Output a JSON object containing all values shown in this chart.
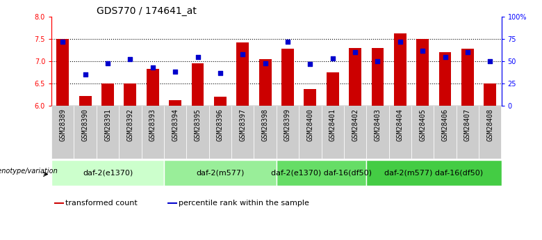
{
  "title": "GDS770 / 174641_at",
  "samples": [
    "GSM28389",
    "GSM28390",
    "GSM28391",
    "GSM28392",
    "GSM28393",
    "GSM28394",
    "GSM28395",
    "GSM28396",
    "GSM28397",
    "GSM28398",
    "GSM28399",
    "GSM28400",
    "GSM28401",
    "GSM28402",
    "GSM28403",
    "GSM28404",
    "GSM28405",
    "GSM28406",
    "GSM28407",
    "GSM28408"
  ],
  "transformed_count": [
    7.5,
    6.22,
    6.5,
    6.5,
    6.83,
    6.12,
    6.95,
    6.2,
    7.42,
    7.05,
    7.28,
    6.38,
    6.75,
    7.3,
    7.3,
    7.62,
    7.5,
    7.2,
    7.28,
    6.5
  ],
  "percentile_rank": [
    72,
    35,
    48,
    52,
    43,
    38,
    55,
    37,
    58,
    48,
    72,
    47,
    53,
    60,
    50,
    72,
    62,
    55,
    60,
    50
  ],
  "ylim_left": [
    6.0,
    8.0
  ],
  "ylim_right": [
    0,
    100
  ],
  "yticks_left": [
    6.0,
    6.5,
    7.0,
    7.5,
    8.0
  ],
  "yticks_right": [
    0,
    25,
    50,
    75,
    100
  ],
  "ytick_labels_right": [
    "0",
    "25",
    "50",
    "75",
    "100%"
  ],
  "bar_color": "#cc0000",
  "dot_color": "#0000cc",
  "bar_bottom": 6.0,
  "genotype_groups": [
    {
      "label": "daf-2(e1370)",
      "start": 0,
      "end": 5,
      "color": "#ccffcc"
    },
    {
      "label": "daf-2(m577)",
      "start": 5,
      "end": 10,
      "color": "#99ee99"
    },
    {
      "label": "daf-2(e1370) daf-16(df50)",
      "start": 10,
      "end": 14,
      "color": "#66dd66"
    },
    {
      "label": "daf-2(m577) daf-16(df50)",
      "start": 14,
      "end": 20,
      "color": "#44cc44"
    }
  ],
  "genotype_label": "genotype/variation",
  "legend_items": [
    {
      "label": "transformed count",
      "color": "#cc0000"
    },
    {
      "label": "percentile rank within the sample",
      "color": "#0000cc"
    }
  ],
  "grid_color": "#000000",
  "title_fontsize": 10,
  "tick_fontsize": 7,
  "group_label_fontsize": 8,
  "bar_width": 0.55,
  "sample_bg_color": "#cccccc",
  "legend_fontsize": 8
}
